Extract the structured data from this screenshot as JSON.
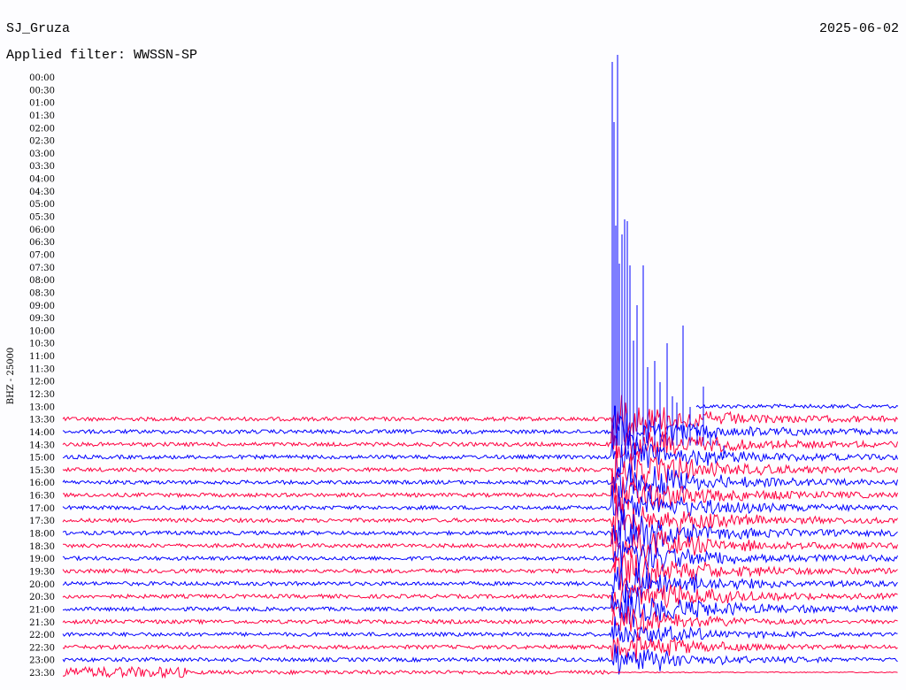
{
  "header": {
    "station": "SJ_Gruza",
    "date": "2025-06-02",
    "filter": "Applied filter: WWSSN-SP"
  },
  "axis_label": "BHZ - 25000",
  "rows": [
    "00:00",
    "00:30",
    "01:00",
    "01:30",
    "02:00",
    "02:30",
    "03:00",
    "03:30",
    "04:00",
    "04:30",
    "05:00",
    "05:30",
    "06:00",
    "06:30",
    "07:00",
    "07:30",
    "08:00",
    "08:30",
    "09:00",
    "09:30",
    "10:00",
    "10:30",
    "11:00",
    "11:30",
    "12:00",
    "12:30",
    "13:00",
    "13:30",
    "14:00",
    "14:30",
    "15:00",
    "15:30",
    "16:00",
    "16:30",
    "17:00",
    "17:30",
    "18:00",
    "18:30",
    "19:00",
    "19:30",
    "20:00",
    "20:30",
    "21:00",
    "21:30",
    "22:00",
    "22:30",
    "23:00",
    "23:30"
  ],
  "trace_colors": [
    "#ff0040",
    "#0000ff"
  ]
}
